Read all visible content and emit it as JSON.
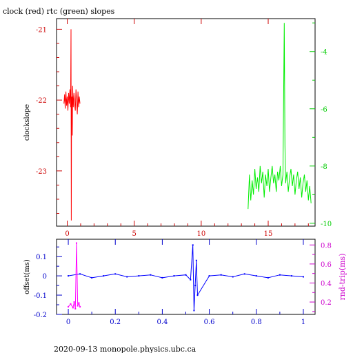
{
  "page": {
    "title": "clock (red) rtc (green) slopes",
    "footer": "2020-09-13  monopole.physics.ubc.ca"
  },
  "colors": {
    "clock": "#ff0000",
    "rtc": "#00ee00",
    "offset": "#0000ff",
    "rndtrip": "#ff00ff",
    "frame": "#000000"
  },
  "chart_data": [
    {
      "type": "line",
      "xlabel": "",
      "ylabel": "clockslope",
      "y2label": "",
      "xlim": [
        -0.8,
        18.5
      ],
      "ylim": [
        -23.78,
        -20.85
      ],
      "y2lim": [
        -10.1,
        -2.85
      ],
      "xticks": [
        "0",
        "5",
        "10",
        "15"
      ],
      "xtick_values": [
        0,
        5,
        10,
        15
      ],
      "yticks": [
        "-21",
        "-22",
        "-23"
      ],
      "ytick_values": [
        -21,
        -22,
        -23
      ],
      "y2ticks": [
        "-4",
        "-6",
        "-8",
        "-10"
      ],
      "y2tick_values": [
        -4,
        -6,
        -8,
        -10
      ],
      "series": [
        {
          "name": "clock (red)",
          "axis": "left",
          "x": [
            -0.25,
            -0.2,
            -0.15,
            -0.1,
            -0.05,
            0,
            0.05,
            0.1,
            0.15,
            0.2,
            0.25,
            0.28,
            0.3,
            0.32,
            0.35,
            0.38,
            0.4,
            0.45,
            0.5,
            0.55,
            0.6,
            0.65,
            0.7,
            0.75,
            0.8,
            0.85,
            0.9,
            0.95
          ],
          "y": [
            -22.05,
            -21.92,
            -22.12,
            -21.88,
            -22.08,
            -21.95,
            -22.15,
            -21.9,
            -22.05,
            -21.85,
            -22.1,
            -21.0,
            -23.7,
            -22.0,
            -21.95,
            -22.5,
            -21.8,
            -22.1,
            -21.9,
            -22.05,
            -22.15,
            -21.85,
            -22.0,
            -22.2,
            -21.88,
            -22.1,
            -21.95,
            -22.05
          ]
        },
        {
          "name": "rtc (green)",
          "axis": "right",
          "x": [
            13.5,
            13.6,
            13.7,
            13.8,
            13.9,
            14.0,
            14.1,
            14.2,
            14.3,
            14.4,
            14.5,
            14.6,
            14.7,
            14.8,
            14.9,
            15.0,
            15.1,
            15.2,
            15.3,
            15.4,
            15.5,
            15.6,
            15.7,
            15.8,
            15.9,
            16.0,
            16.1,
            16.2,
            16.25,
            16.3,
            16.4,
            16.5,
            16.6,
            16.7,
            16.8,
            16.9,
            17.0,
            17.1,
            17.2,
            17.3,
            17.4,
            17.5,
            17.6,
            17.7,
            17.8,
            17.9,
            18.0,
            18.1,
            18.2
          ],
          "y": [
            -9.5,
            -8.3,
            -9.2,
            -8.5,
            -9.0,
            -8.1,
            -8.8,
            -8.4,
            -8.9,
            -8.0,
            -8.6,
            -8.2,
            -9.1,
            -8.3,
            -8.7,
            -8.1,
            -8.9,
            -8.4,
            -8.0,
            -8.6,
            -8.3,
            -8.9,
            -8.2,
            -8.5,
            -8.0,
            -8.7,
            -8.3,
            -3.0,
            -7.3,
            -8.6,
            -8.2,
            -8.9,
            -8.4,
            -8.1,
            -8.7,
            -8.3,
            -9.0,
            -8.5,
            -8.2,
            -8.8,
            -8.4,
            -9.1,
            -8.6,
            -8.3,
            -8.9,
            -8.5,
            -9.2,
            -8.7,
            -9.3
          ]
        }
      ]
    },
    {
      "type": "scatter",
      "xlabel": "",
      "ylabel": "offset(ms)",
      "y2label": "rnd-trip(ms)",
      "xlim": [
        -0.05,
        1.05
      ],
      "ylim": [
        -0.2,
        0.19
      ],
      "y2lim": [
        0.07,
        0.86
      ],
      "xticks": [
        "0",
        "0.2",
        "0.4",
        "0.6",
        "0.8",
        "1"
      ],
      "xtick_values": [
        0,
        0.2,
        0.4,
        0.6,
        0.8,
        1
      ],
      "yticks": [
        "0.1",
        "0",
        "-0.1",
        "-0.2"
      ],
      "ytick_values": [
        0.1,
        0,
        -0.1,
        -0.2
      ],
      "y2ticks": [
        "0.8",
        "0.6",
        "0.4",
        "0.2"
      ],
      "y2tick_values": [
        0.8,
        0.6,
        0.4,
        0.2
      ],
      "series": [
        {
          "name": "offset",
          "axis": "left",
          "x": [
            0,
            0.05,
            0.1,
            0.15,
            0.2,
            0.25,
            0.3,
            0.35,
            0.4,
            0.45,
            0.5,
            0.52,
            0.53,
            0.535,
            0.54,
            0.545,
            0.55,
            0.6,
            0.65,
            0.7,
            0.75,
            0.8,
            0.85,
            0.9,
            0.95,
            1.0
          ],
          "y": [
            0.0,
            0.01,
            -0.01,
            0.0,
            0.01,
            -0.005,
            0.0,
            0.005,
            -0.01,
            0.0,
            0.005,
            -0.02,
            0.16,
            -0.18,
            -0.05,
            0.08,
            -0.1,
            0.0,
            0.005,
            -0.005,
            0.01,
            0.0,
            -0.01,
            0.005,
            0.0,
            -0.005
          ]
        },
        {
          "name": "rnd-trip",
          "axis": "right",
          "x": [
            0.0,
            0.01,
            0.02,
            0.025,
            0.03,
            0.035,
            0.04,
            0.045,
            0.05
          ],
          "y": [
            0.15,
            0.18,
            0.14,
            0.2,
            0.13,
            0.82,
            0.16,
            0.19,
            0.15
          ]
        }
      ]
    }
  ]
}
